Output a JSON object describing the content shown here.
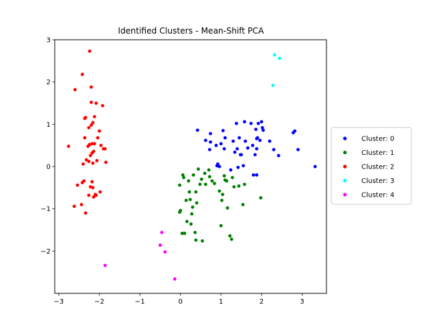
{
  "chart_data": {
    "type": "scatter",
    "title": "Identified Clusters - Mean-Shift PCA",
    "xlabel": "",
    "ylabel": "",
    "xlim": [
      -3.1,
      3.6
    ],
    "ylim": [
      -3.0,
      3.0
    ],
    "xticks": [
      -3,
      -2,
      -1,
      0,
      1,
      2,
      3
    ],
    "yticks": [
      -2,
      -1,
      0,
      1,
      2,
      3
    ],
    "grid": false,
    "legend_position": "center-right-outside",
    "series": [
      {
        "name": "Cluster: 0",
        "color": "#0000ff",
        "points": [
          [
            0.42,
            0.86
          ],
          [
            0.62,
            0.62
          ],
          [
            0.72,
            0.4
          ],
          [
            0.74,
            0.58
          ],
          [
            0.74,
            0.78
          ],
          [
            0.88,
            0.5
          ],
          [
            0.9,
            0.02
          ],
          [
            0.92,
            0.06
          ],
          [
            0.96,
            0.0
          ],
          [
            1.0,
            0.54
          ],
          [
            1.05,
            0.85
          ],
          [
            1.08,
            0.42
          ],
          [
            1.1,
            0.68
          ],
          [
            1.24,
            -0.08
          ],
          [
            1.3,
            0.6
          ],
          [
            1.34,
            0.34
          ],
          [
            1.38,
            1.02
          ],
          [
            1.4,
            0.42
          ],
          [
            1.42,
            -0.02
          ],
          [
            1.45,
            0.68
          ],
          [
            1.48,
            0.28
          ],
          [
            1.5,
            0.28
          ],
          [
            1.55,
            0.02
          ],
          [
            1.58,
            1.06
          ],
          [
            1.6,
            0.6
          ],
          [
            1.66,
            0.44
          ],
          [
            1.74,
            1.02
          ],
          [
            1.78,
            0.5
          ],
          [
            1.8,
            -0.2
          ],
          [
            1.84,
            0.28
          ],
          [
            1.86,
            0.88
          ],
          [
            1.88,
            0.66
          ],
          [
            1.88,
            -0.2
          ],
          [
            1.88,
            0.42
          ],
          [
            1.9,
            0.68
          ],
          [
            1.92,
            1.02
          ],
          [
            1.96,
            0.62
          ],
          [
            2.0,
            1.06
          ],
          [
            2.02,
            0.92
          ],
          [
            2.04,
            0.86
          ],
          [
            2.2,
            0.6
          ],
          [
            2.3,
            0.4
          ],
          [
            2.42,
            0.26
          ],
          [
            2.78,
            0.8
          ],
          [
            2.82,
            0.84
          ],
          [
            2.9,
            0.4
          ],
          [
            3.32,
            0.0
          ]
        ]
      },
      {
        "name": "Cluster: 1",
        "color": "#008000",
        "points": [
          [
            -0.02,
            -0.44
          ],
          [
            -0.02,
            -1.08
          ],
          [
            0.0,
            -1.04
          ],
          [
            0.04,
            -1.58
          ],
          [
            0.06,
            -0.2
          ],
          [
            0.08,
            -0.26
          ],
          [
            0.1,
            -1.58
          ],
          [
            0.14,
            -0.8
          ],
          [
            0.16,
            -1.3
          ],
          [
            0.2,
            -0.34
          ],
          [
            0.22,
            -0.6
          ],
          [
            0.24,
            -0.78
          ],
          [
            0.26,
            -1.36
          ],
          [
            0.28,
            -1.12
          ],
          [
            0.3,
            -0.96
          ],
          [
            0.32,
            -0.2
          ],
          [
            0.36,
            -1.56
          ],
          [
            0.38,
            -1.74
          ],
          [
            0.38,
            -0.6
          ],
          [
            0.4,
            -0.86
          ],
          [
            0.44,
            -0.06
          ],
          [
            0.48,
            -0.42
          ],
          [
            0.52,
            -0.3
          ],
          [
            0.54,
            -1.76
          ],
          [
            0.6,
            -0.16
          ],
          [
            0.62,
            -0.42
          ],
          [
            0.7,
            -0.08
          ],
          [
            0.72,
            -0.24
          ],
          [
            0.78,
            -0.34
          ],
          [
            0.84,
            -0.4
          ],
          [
            0.96,
            -0.58
          ],
          [
            1.0,
            -1.4
          ],
          [
            1.02,
            -0.8
          ],
          [
            1.04,
            -0.66
          ],
          [
            1.08,
            -0.22
          ],
          [
            1.1,
            -0.32
          ],
          [
            1.14,
            -0.34
          ],
          [
            1.16,
            -0.98
          ],
          [
            1.22,
            -1.64
          ],
          [
            1.26,
            -1.72
          ],
          [
            1.28,
            -0.26
          ],
          [
            1.32,
            -0.48
          ],
          [
            1.44,
            -0.46
          ],
          [
            1.54,
            -0.9
          ],
          [
            1.58,
            -0.42
          ],
          [
            1.98,
            -0.74
          ]
        ]
      },
      {
        "name": "Cluster: 2",
        "color": "#ff0000",
        "points": [
          [
            -2.76,
            0.48
          ],
          [
            -2.62,
            -0.94
          ],
          [
            -2.6,
            1.82
          ],
          [
            -2.54,
            -0.44
          ],
          [
            -2.44,
            -0.9
          ],
          [
            -2.42,
            2.18
          ],
          [
            -2.42,
            -0.38
          ],
          [
            -2.4,
            0.06
          ],
          [
            -2.38,
            -0.34
          ],
          [
            -2.36,
            1.14
          ],
          [
            -2.36,
            0.68
          ],
          [
            -2.34,
            1.16
          ],
          [
            -2.34,
            -1.1
          ],
          [
            -2.32,
            0.16
          ],
          [
            -2.28,
            0.48
          ],
          [
            -2.26,
            -0.68
          ],
          [
            -2.26,
            0.92
          ],
          [
            -2.26,
            0.12
          ],
          [
            -2.24,
            2.73
          ],
          [
            -2.24,
            0.52
          ],
          [
            -2.22,
            0.26
          ],
          [
            -2.22,
            -0.48
          ],
          [
            -2.2,
            1.52
          ],
          [
            -2.2,
            1.88
          ],
          [
            -2.2,
            0.98
          ],
          [
            -2.18,
            0.54
          ],
          [
            -2.18,
            -0.36
          ],
          [
            -2.18,
            0.32
          ],
          [
            -2.16,
            0.08
          ],
          [
            -2.16,
            -0.5
          ],
          [
            -2.16,
            1.04
          ],
          [
            -2.14,
            0.36
          ],
          [
            -2.14,
            -0.72
          ],
          [
            -2.12,
            1.18
          ],
          [
            -2.12,
            0.54
          ],
          [
            -2.1,
            -0.66
          ],
          [
            -2.08,
            1.5
          ],
          [
            -2.08,
            -0.68
          ],
          [
            -2.06,
            0.14
          ],
          [
            -2.04,
            0.68
          ],
          [
            -2.0,
            0.84
          ],
          [
            -1.98,
            -0.6
          ],
          [
            -1.96,
            0.5
          ],
          [
            -1.92,
            1.44
          ],
          [
            -1.9,
            0.42
          ],
          [
            -1.86,
            0.42
          ],
          [
            -1.84,
            0.1
          ]
        ]
      },
      {
        "name": "Cluster: 3",
        "color": "#00ffff",
        "points": [
          [
            2.28,
            1.92
          ],
          [
            2.32,
            2.64
          ],
          [
            2.44,
            2.56
          ]
        ]
      },
      {
        "name": "Cluster: 4",
        "color": "#ff00ff",
        "points": [
          [
            -1.86,
            -2.34
          ],
          [
            -0.5,
            -1.86
          ],
          [
            -0.46,
            -1.56
          ],
          [
            -0.38,
            -2.02
          ],
          [
            -0.14,
            -2.66
          ]
        ]
      }
    ]
  }
}
